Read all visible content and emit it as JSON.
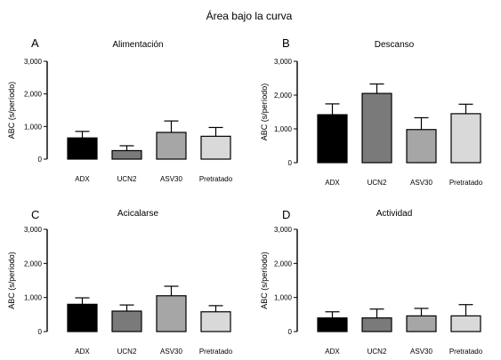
{
  "title": "Área bajo la curva",
  "chart_data": [
    {
      "type": "bar",
      "letter": "A",
      "title": "Alimentación",
      "ylabel": "ABC (s/período)",
      "categories": [
        "ADX",
        "UCN2",
        "ASV30",
        "Pretratado"
      ],
      "values": [
        650,
        260,
        820,
        700
      ],
      "errors": [
        200,
        150,
        350,
        270
      ],
      "colors": [
        "#000000",
        "#7a7a7a",
        "#a6a6a6",
        "#d9d9d9"
      ],
      "ylim": [
        0,
        3000
      ],
      "yticks": [
        0,
        1000,
        2000,
        3000
      ],
      "ytick_labels": [
        "0",
        "1,000",
        "2,000",
        "3,000"
      ]
    },
    {
      "type": "bar",
      "letter": "B",
      "title": "Descanso",
      "ylabel": "ABC (s/período)",
      "categories": [
        "ADX",
        "UCN2",
        "ASV30",
        "Pretratado"
      ],
      "values": [
        1420,
        2050,
        980,
        1450
      ],
      "errors": [
        320,
        280,
        350,
        280
      ],
      "colors": [
        "#000000",
        "#7a7a7a",
        "#a6a6a6",
        "#d9d9d9"
      ],
      "ylim": [
        0,
        3000
      ],
      "yticks": [
        0,
        1000,
        2000,
        3000
      ],
      "ytick_labels": [
        "0",
        "1,000",
        "2,000",
        "3,000"
      ]
    },
    {
      "type": "bar",
      "letter": "C",
      "title": "Acicalarse",
      "ylabel": "ABC (s/período)",
      "categories": [
        "ADX",
        "UCN2",
        "ASV30",
        "Pretratado"
      ],
      "values": [
        800,
        600,
        1050,
        580
      ],
      "errors": [
        190,
        180,
        280,
        180
      ],
      "colors": [
        "#000000",
        "#7a7a7a",
        "#a6a6a6",
        "#d9d9d9"
      ],
      "ylim": [
        0,
        3000
      ],
      "yticks": [
        0,
        1000,
        2000,
        3000
      ],
      "ytick_labels": [
        "0",
        "1,000",
        "2,000",
        "3,000"
      ]
    },
    {
      "type": "bar",
      "letter": "D",
      "title": "Actividad",
      "ylabel": "ABC (s/período)",
      "categories": [
        "ADX",
        "UCN2",
        "ASV30",
        "Pretratado"
      ],
      "values": [
        400,
        400,
        460,
        460
      ],
      "errors": [
        180,
        260,
        220,
        330
      ],
      "colors": [
        "#000000",
        "#7a7a7a",
        "#a6a6a6",
        "#d9d9d9"
      ],
      "ylim": [
        0,
        3000
      ],
      "yticks": [
        0,
        1000,
        2000,
        3000
      ],
      "ytick_labels": [
        "0",
        "1,000",
        "2,000",
        "3,000"
      ]
    }
  ]
}
